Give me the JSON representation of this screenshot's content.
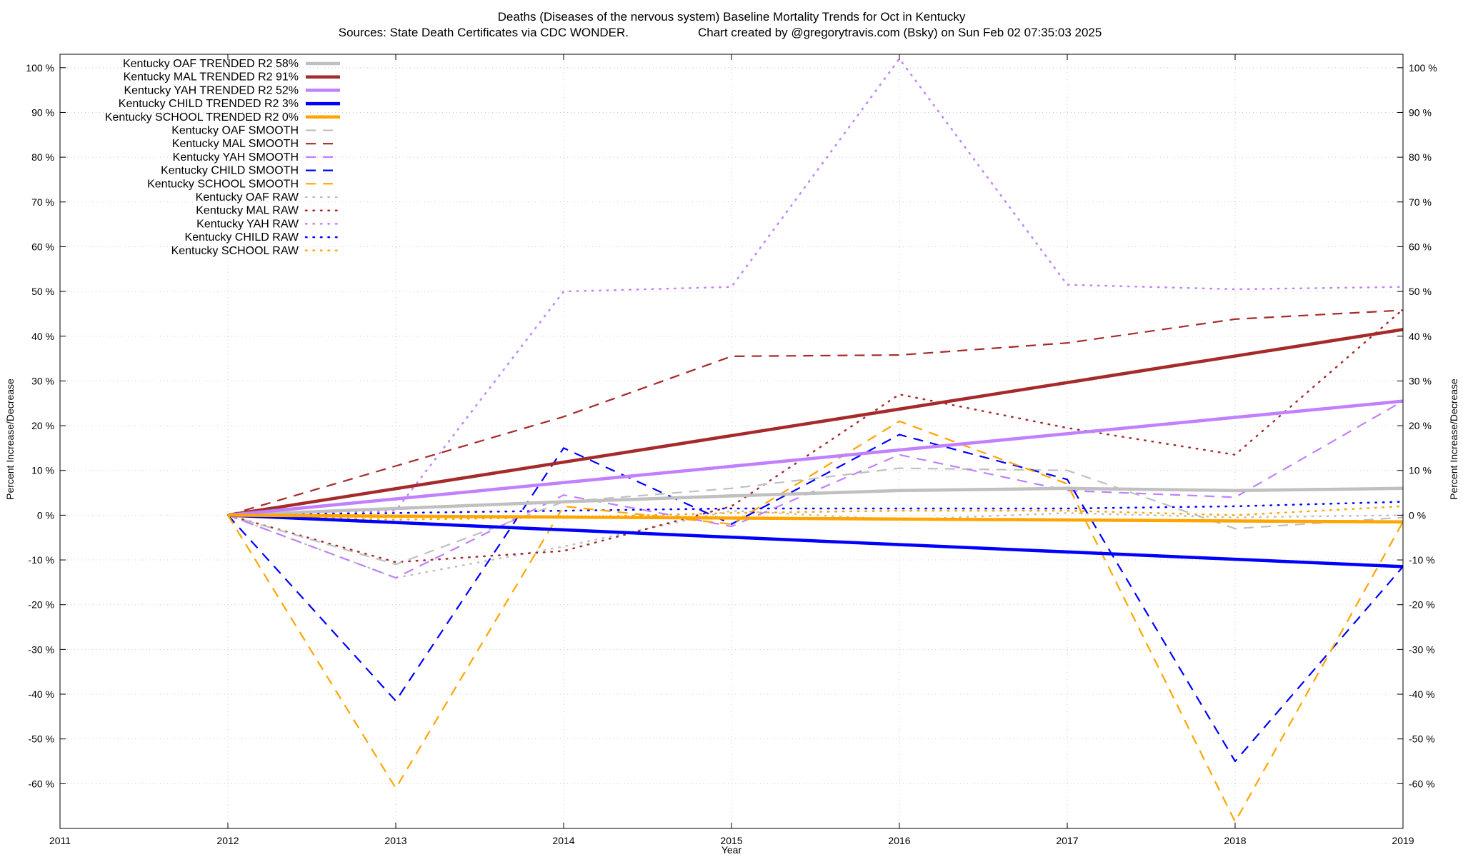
{
  "chart_data": {
    "type": "line",
    "title": "Deaths (Diseases of the nervous system)  Baseline Mortality Trends for Oct in Kentucky",
    "subtitle_left": "Sources: State Death Certificates via CDC WONDER.",
    "subtitle_right": "Chart created by @gregorytravis.com (Bsky) on Sun Feb 02 07:35:03 2025",
    "xlabel": "Year",
    "ylabel_left": "Percent Increase/Decrease",
    "ylabel_right": "Percent Increase/Decrease",
    "xlim": [
      2011,
      2019
    ],
    "ylim": [
      -70,
      103
    ],
    "x_ticks": [
      2011,
      2012,
      2013,
      2014,
      2015,
      2016,
      2017,
      2018,
      2019
    ],
    "x_tick_labels": [
      "2011",
      "2012",
      "2013",
      "2014",
      "2015",
      "2016",
      "2017",
      "2018",
      "2019"
    ],
    "y_ticks": [
      -60,
      -50,
      -40,
      -30,
      -20,
      -10,
      0,
      10,
      20,
      30,
      40,
      50,
      60,
      70,
      80,
      90,
      100
    ],
    "y_tick_labels": [
      "-60 %",
      "-50 %",
      "-40 %",
      "-30 %",
      "-20 %",
      "-10 %",
      "0 %",
      "10 %",
      "20 %",
      "30 %",
      "40 %",
      "50 %",
      "60 %",
      "70 %",
      "80 %",
      "90 %",
      "100 %"
    ],
    "grid": true,
    "legend_position": "top-left",
    "series": [
      {
        "name": "Kentucky OAF TRENDED R2  58%",
        "style": "solid",
        "color": "#c0c0c0",
        "x": [
          2012,
          2013,
          2014,
          2015,
          2016,
          2017,
          2018,
          2019
        ],
        "y": [
          0,
          1.5,
          3,
          4.3,
          5.5,
          6,
          5.5,
          6
        ]
      },
      {
        "name": "Kentucky MAL TRENDED R2  91%",
        "style": "solid",
        "color": "#a52a2a",
        "x": [
          2012,
          2019
        ],
        "y": [
          0,
          41.5
        ]
      },
      {
        "name": "Kentucky YAH TRENDED R2  52%",
        "style": "solid",
        "color": "#c080ff",
        "x": [
          2012,
          2019
        ],
        "y": [
          0,
          25.5
        ]
      },
      {
        "name": "Kentucky CHILD TRENDED R2   3%",
        "style": "solid",
        "color": "#0000ff",
        "x": [
          2012,
          2019
        ],
        "y": [
          0,
          -11.5
        ]
      },
      {
        "name": "Kentucky SCHOOL TRENDED R2   0%",
        "style": "solid",
        "color": "#ffa500",
        "x": [
          2012,
          2019
        ],
        "y": [
          0,
          -1.5
        ]
      },
      {
        "name": "Kentucky OAF SMOOTH",
        "style": "dashed",
        "color": "#c0c0c0",
        "x": [
          2012,
          2013,
          2014,
          2015,
          2016,
          2017,
          2018,
          2019
        ],
        "y": [
          0,
          -11,
          3,
          6,
          10.5,
          10,
          -3,
          -0.5
        ]
      },
      {
        "name": "Kentucky MAL SMOOTH",
        "style": "dashed",
        "color": "#a52a2a",
        "x": [
          2012,
          2013,
          2014,
          2015,
          2016,
          2017,
          2018,
          2019
        ],
        "y": [
          0,
          11,
          22,
          35.5,
          35.8,
          38.5,
          43.8,
          45.8
        ]
      },
      {
        "name": "Kentucky YAH SMOOTH",
        "style": "dashed",
        "color": "#c080ff",
        "x": [
          2012,
          2013,
          2014,
          2015,
          2016,
          2017,
          2018,
          2019
        ],
        "y": [
          0,
          -14,
          4.5,
          -2.5,
          13.5,
          5.5,
          4,
          25.5
        ]
      },
      {
        "name": "Kentucky CHILD SMOOTH",
        "style": "dashed",
        "color": "#0000ff",
        "x": [
          2012,
          2013,
          2014,
          2015,
          2016,
          2017,
          2018,
          2019
        ],
        "y": [
          0,
          -41.5,
          15,
          -2,
          18,
          8,
          -55,
          -11.5
        ]
      },
      {
        "name": "Kentucky SCHOOL SMOOTH",
        "style": "dashed",
        "color": "#ffa500",
        "x": [
          2012,
          2013,
          2014,
          2015,
          2016,
          2017,
          2018,
          2019
        ],
        "y": [
          0,
          -61,
          2,
          -2,
          21,
          7,
          -68.5,
          -1.5
        ]
      },
      {
        "name": "Kentucky OAF RAW",
        "style": "dotted",
        "color": "#c0c0c0",
        "x": [
          2012,
          2013,
          2014,
          2015,
          2016,
          2017,
          2018,
          2019
        ],
        "y": [
          0,
          -14,
          -7,
          1,
          -1,
          0.5,
          -0.5,
          0
        ]
      },
      {
        "name": "Kentucky MAL RAW",
        "style": "dotted",
        "color": "#a52a2a",
        "x": [
          2012,
          2013,
          2014,
          2015,
          2016,
          2017,
          2018,
          2019
        ],
        "y": [
          0,
          -10.5,
          -8,
          2,
          27,
          19.5,
          13.5,
          46
        ]
      },
      {
        "name": "Kentucky YAH RAW",
        "style": "dotted",
        "color": "#c080ff",
        "x": [
          2012,
          2013,
          2014,
          2015,
          2016,
          2017,
          2018,
          2019
        ],
        "y": [
          0,
          1,
          50,
          51,
          102,
          51.5,
          50.5,
          51
        ]
      },
      {
        "name": "Kentucky CHILD RAW",
        "style": "dotted",
        "color": "#0000ff",
        "x": [
          2012,
          2013,
          2014,
          2015,
          2016,
          2017,
          2018,
          2019
        ],
        "y": [
          0,
          0.5,
          1,
          1.5,
          1.5,
          1.5,
          2,
          3
        ]
      },
      {
        "name": "Kentucky SCHOOL RAW",
        "style": "dotted",
        "color": "#ffa500",
        "x": [
          2012,
          2013,
          2014,
          2015,
          2016,
          2017,
          2018,
          2019
        ],
        "y": [
          0,
          -1,
          -0.5,
          0.5,
          1,
          1,
          0,
          2
        ]
      }
    ]
  }
}
